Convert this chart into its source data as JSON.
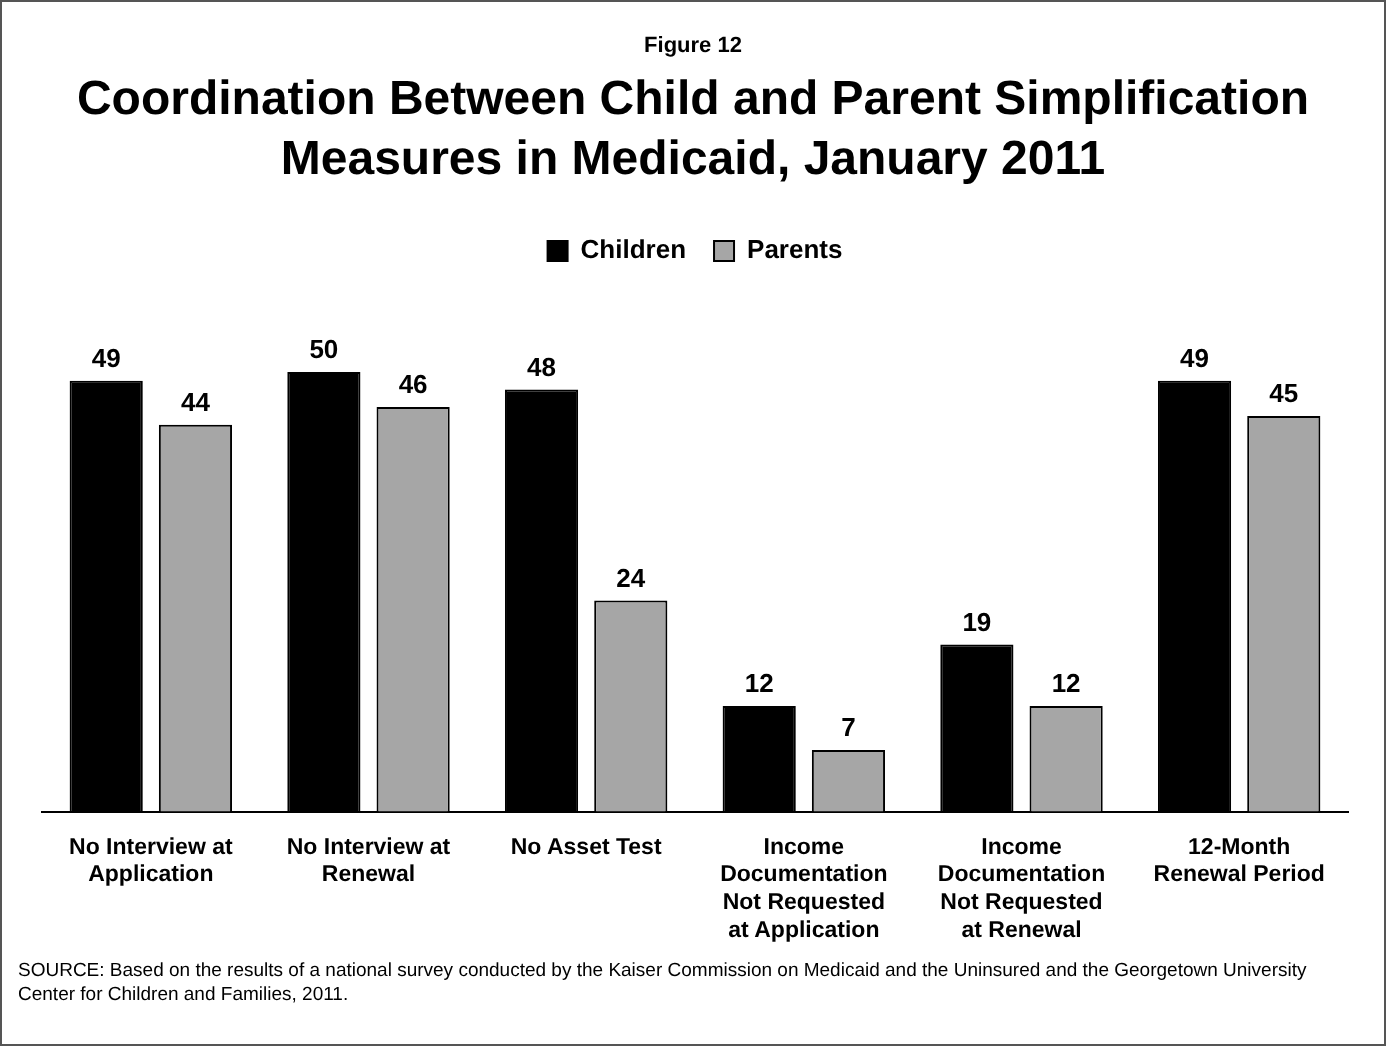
{
  "chart_data": {
    "type": "bar",
    "subtitle": "Figure 12",
    "title": "Coordination Between Child and Parent Simplification Measures in Medicaid, January 2011",
    "categories": [
      "No Interview at Application",
      "No Interview at Renewal",
      "No Asset Test",
      "Income Documentation Not Requested at Application",
      "Income Documentation Not Requested at Renewal",
      "12-Month Renewal Period"
    ],
    "series": [
      {
        "name": "Children",
        "color": "#000000",
        "values": [
          49,
          50,
          48,
          12,
          19,
          49
        ]
      },
      {
        "name": "Parents",
        "color": "#a6a6a6",
        "values": [
          44,
          46,
          24,
          7,
          12,
          45
        ]
      }
    ],
    "data_labels": true,
    "legend": "top",
    "grid": false,
    "annotations": [
      "SOURCE: Based on the results of a national survey conducted by the Kaiser Commission on Medicaid and the Uninsured and the Georgetown University Center for Children and Families, 2011."
    ]
  }
}
